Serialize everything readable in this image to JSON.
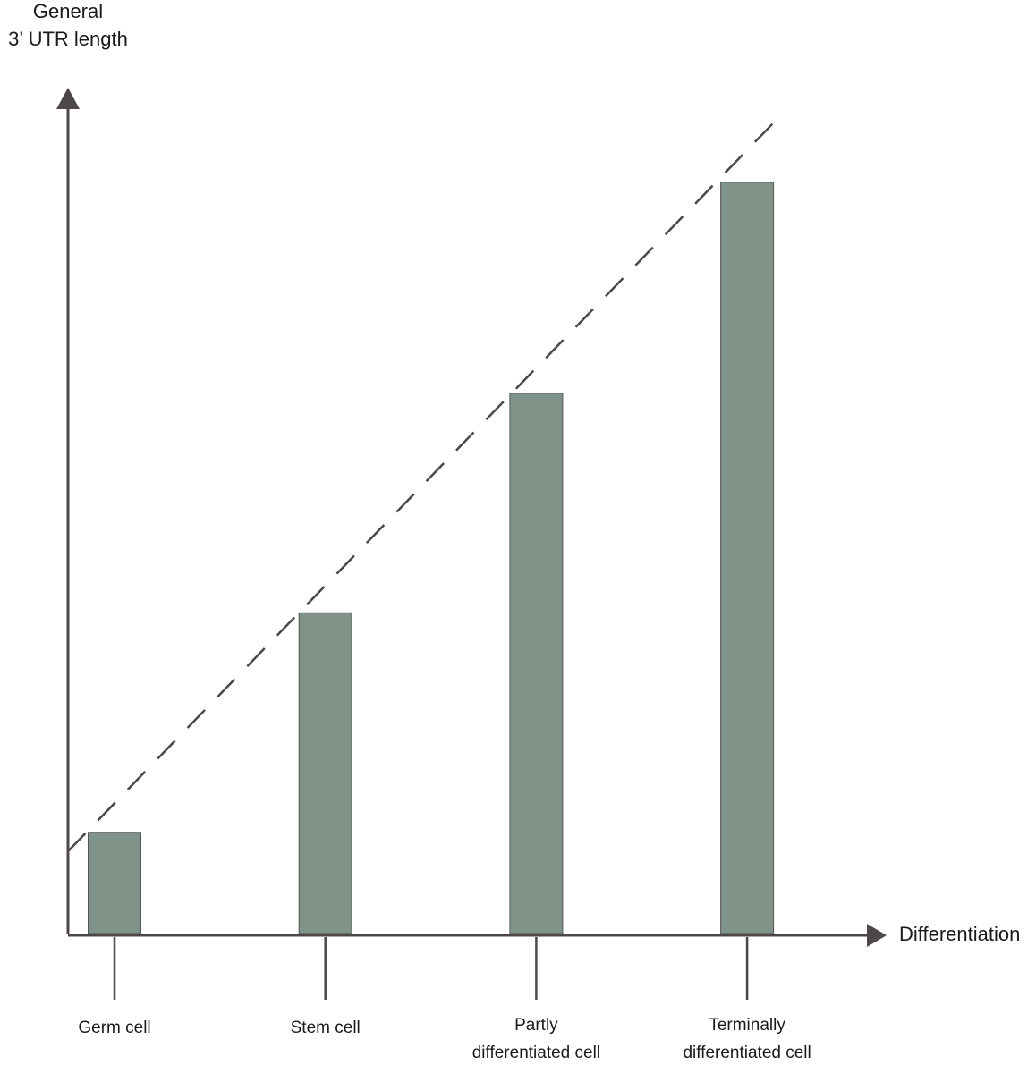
{
  "chart_data": {
    "type": "bar",
    "y_label": "General\n3’ UTR length",
    "x_label": "Differentiation",
    "categories": [
      "Germ cell",
      "Stem cell",
      "Partly\ndifferentiated cell",
      "Terminally\ndifferentiated cell"
    ],
    "values": [
      12,
      38,
      64,
      89
    ],
    "color": "#7f9388",
    "ylim": [
      0,
      100
    ]
  }
}
